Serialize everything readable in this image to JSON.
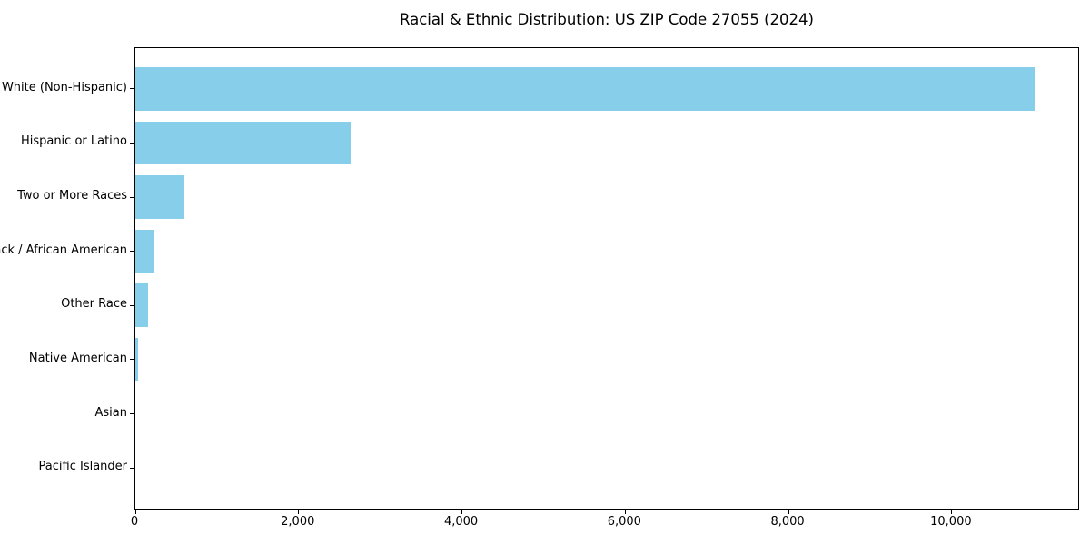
{
  "title": "Racial & Ethnic Distribution: US ZIP Code 27055 (2024)",
  "chart_data": {
    "type": "bar",
    "orientation": "horizontal",
    "title": "Racial & Ethnic Distribution: US ZIP Code 27055 (2024)",
    "categories": [
      "White (Non-Hispanic)",
      "Hispanic or Latino",
      "Two or More Races",
      "Black / African American",
      "Other Race",
      "Native American",
      "Asian",
      "Pacific Islander"
    ],
    "values": [
      11010,
      2640,
      600,
      235,
      155,
      35,
      0,
      0
    ],
    "xlabel": "",
    "ylabel": "",
    "xlim": [
      0,
      11570
    ],
    "x_ticks": [
      0,
      2000,
      4000,
      6000,
      8000,
      10000
    ],
    "x_tick_labels": [
      "0",
      "2,000",
      "4,000",
      "6,000",
      "8,000",
      "10,000"
    ],
    "bar_color": "#87CEEB",
    "spine_color": "#000000",
    "grid": false,
    "legend": "none"
  }
}
